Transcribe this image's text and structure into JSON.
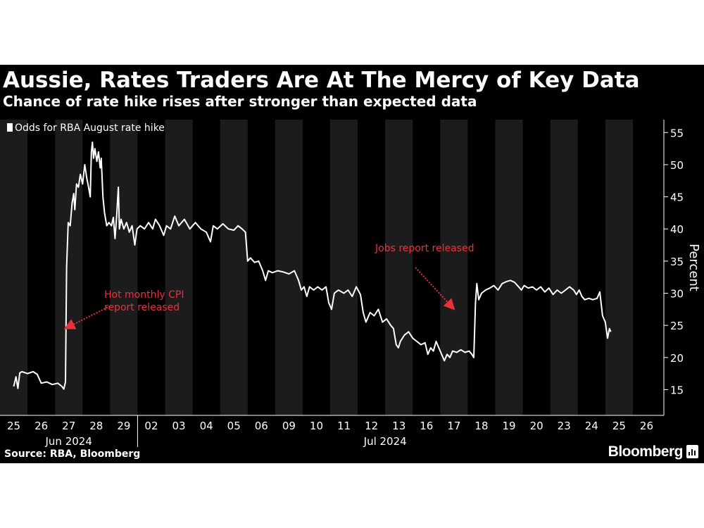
{
  "title": "Aussie, Rates Traders Are At The Mercy of Key Data",
  "subtitle": "Chance of rate hike rises after stronger than expected data",
  "source": "Source: RBA, Bloomberg",
  "brand": "Bloomberg",
  "colors": {
    "background": "#000000",
    "band": "#1c1c1c",
    "line": "#ffffff",
    "annotation": "#e8323c"
  },
  "chart_data": {
    "type": "line",
    "title": "Aussie, Rates Traders Are At The Mercy of Key Data",
    "subtitle": "Chance of rate hike rises after stronger than expected data",
    "ylabel": "Percent",
    "ylim": [
      11,
      57
    ],
    "yticks": [
      15,
      20,
      25,
      30,
      35,
      40,
      45,
      50,
      55
    ],
    "y_axis_side": "right",
    "legend": {
      "placement": "top-left",
      "entries": [
        "Odds for RBA August rate hike"
      ]
    },
    "categories": [
      "25",
      "26",
      "27",
      "28",
      "29",
      "02",
      "03",
      "04",
      "05",
      "06",
      "09",
      "10",
      "11",
      "12",
      "13",
      "16",
      "17",
      "18",
      "19",
      "20",
      "23",
      "24",
      "25",
      "26"
    ],
    "month_labels": [
      {
        "label": "Jun 2024",
        "center_index": 2
      },
      {
        "label": "Jul 2024",
        "center_index": 13.5
      }
    ],
    "series": [
      {
        "name": "Odds for RBA August rate hike",
        "points": [
          [
            0.0,
            15.5
          ],
          [
            0.08,
            17.0
          ],
          [
            0.15,
            15.2
          ],
          [
            0.22,
            17.6
          ],
          [
            0.3,
            17.8
          ],
          [
            0.5,
            17.5
          ],
          [
            0.7,
            17.8
          ],
          [
            0.85,
            17.4
          ],
          [
            1.0,
            16.0
          ],
          [
            1.2,
            16.2
          ],
          [
            1.4,
            15.8
          ],
          [
            1.6,
            16.0
          ],
          [
            1.75,
            15.5
          ],
          [
            1.82,
            15.1
          ],
          [
            1.88,
            16.2
          ],
          [
            1.92,
            34.0
          ],
          [
            1.98,
            41.0
          ],
          [
            2.05,
            40.5
          ],
          [
            2.12,
            44.0
          ],
          [
            2.18,
            45.5
          ],
          [
            2.22,
            43.0
          ],
          [
            2.28,
            47.0
          ],
          [
            2.35,
            46.5
          ],
          [
            2.42,
            48.5
          ],
          [
            2.5,
            47.0
          ],
          [
            2.58,
            50.0
          ],
          [
            2.65,
            48.0
          ],
          [
            2.72,
            46.5
          ],
          [
            2.78,
            45.0
          ],
          [
            2.82,
            52.0
          ],
          [
            2.86,
            53.5
          ],
          [
            2.9,
            51.0
          ],
          [
            2.95,
            52.5
          ],
          [
            3.02,
            50.5
          ],
          [
            3.08,
            52.0
          ],
          [
            3.14,
            49.5
          ],
          [
            3.18,
            51.0
          ],
          [
            3.24,
            45.0
          ],
          [
            3.3,
            42.5
          ],
          [
            3.38,
            40.5
          ],
          [
            3.46,
            41.0
          ],
          [
            3.55,
            40.5
          ],
          [
            3.62,
            41.8
          ],
          [
            3.68,
            38.5
          ],
          [
            3.74,
            42.0
          ],
          [
            3.8,
            46.5
          ],
          [
            3.84,
            40.0
          ],
          [
            3.9,
            41.5
          ],
          [
            4.0,
            40.0
          ],
          [
            4.1,
            41.0
          ],
          [
            4.2,
            39.5
          ],
          [
            4.3,
            40.5
          ],
          [
            4.4,
            37.5
          ],
          [
            4.48,
            40.0
          ],
          [
            4.6,
            40.5
          ],
          [
            4.75,
            40.0
          ],
          [
            4.9,
            41.0
          ],
          [
            5.05,
            40.0
          ],
          [
            5.15,
            41.5
          ],
          [
            5.3,
            40.5
          ],
          [
            5.45,
            39.0
          ],
          [
            5.55,
            40.5
          ],
          [
            5.7,
            40.0
          ],
          [
            5.85,
            42.0
          ],
          [
            6.0,
            40.5
          ],
          [
            6.2,
            41.5
          ],
          [
            6.4,
            40.0
          ],
          [
            6.6,
            41.0
          ],
          [
            6.8,
            40.0
          ],
          [
            7.0,
            39.5
          ],
          [
            7.15,
            38.0
          ],
          [
            7.25,
            40.5
          ],
          [
            7.4,
            40.0
          ],
          [
            7.6,
            40.8
          ],
          [
            7.8,
            40.0
          ],
          [
            8.0,
            39.8
          ],
          [
            8.15,
            40.5
          ],
          [
            8.3,
            40.0
          ],
          [
            8.42,
            39.5
          ],
          [
            8.5,
            35.0
          ],
          [
            8.6,
            35.5
          ],
          [
            8.75,
            34.8
          ],
          [
            8.9,
            35.0
          ],
          [
            9.05,
            33.5
          ],
          [
            9.15,
            32.0
          ],
          [
            9.25,
            33.5
          ],
          [
            9.4,
            33.2
          ],
          [
            9.6,
            33.5
          ],
          [
            9.8,
            33.3
          ],
          [
            10.0,
            33.0
          ],
          [
            10.2,
            33.5
          ],
          [
            10.35,
            32.0
          ],
          [
            10.45,
            30.5
          ],
          [
            10.55,
            31.0
          ],
          [
            10.65,
            29.5
          ],
          [
            10.75,
            31.0
          ],
          [
            10.9,
            30.5
          ],
          [
            11.05,
            31.0
          ],
          [
            11.2,
            30.5
          ],
          [
            11.35,
            31.0
          ],
          [
            11.45,
            28.5
          ],
          [
            11.55,
            27.5
          ],
          [
            11.65,
            30.0
          ],
          [
            11.8,
            30.5
          ],
          [
            12.0,
            30.0
          ],
          [
            12.15,
            30.5
          ],
          [
            12.3,
            29.5
          ],
          [
            12.45,
            31.0
          ],
          [
            12.6,
            29.8
          ],
          [
            12.7,
            27.0
          ],
          [
            12.8,
            25.5
          ],
          [
            12.95,
            27.0
          ],
          [
            13.1,
            26.5
          ],
          [
            13.25,
            27.5
          ],
          [
            13.4,
            25.5
          ],
          [
            13.55,
            26.0
          ],
          [
            13.7,
            25.0
          ],
          [
            13.8,
            24.5
          ],
          [
            13.9,
            22.0
          ],
          [
            13.98,
            21.5
          ],
          [
            14.05,
            22.5
          ],
          [
            14.2,
            23.5
          ],
          [
            14.35,
            24.0
          ],
          [
            14.5,
            23.0
          ],
          [
            14.65,
            22.5
          ],
          [
            14.8,
            22.0
          ],
          [
            14.95,
            22.3
          ],
          [
            15.05,
            20.5
          ],
          [
            15.15,
            21.5
          ],
          [
            15.25,
            21.0
          ],
          [
            15.35,
            22.5
          ],
          [
            15.45,
            21.5
          ],
          [
            15.55,
            20.5
          ],
          [
            15.65,
            19.5
          ],
          [
            15.75,
            20.5
          ],
          [
            15.85,
            20.0
          ],
          [
            15.95,
            21.0
          ],
          [
            16.1,
            20.8
          ],
          [
            16.25,
            21.2
          ],
          [
            16.4,
            20.8
          ],
          [
            16.55,
            21.0
          ],
          [
            16.65,
            20.5
          ],
          [
            16.72,
            20.0
          ],
          [
            16.78,
            28.5
          ],
          [
            16.83,
            31.5
          ],
          [
            16.9,
            29.0
          ],
          [
            17.0,
            30.0
          ],
          [
            17.15,
            30.5
          ],
          [
            17.3,
            30.8
          ],
          [
            17.45,
            31.2
          ],
          [
            17.6,
            30.5
          ],
          [
            17.75,
            31.5
          ],
          [
            17.9,
            31.8
          ],
          [
            18.05,
            32.0
          ],
          [
            18.2,
            31.7
          ],
          [
            18.35,
            31.0
          ],
          [
            18.45,
            30.5
          ],
          [
            18.55,
            31.2
          ],
          [
            18.7,
            30.8
          ],
          [
            18.85,
            31.0
          ],
          [
            19.0,
            30.5
          ],
          [
            19.15,
            31.0
          ],
          [
            19.3,
            30.2
          ],
          [
            19.45,
            30.8
          ],
          [
            19.6,
            29.8
          ],
          [
            19.75,
            30.5
          ],
          [
            19.9,
            30.0
          ],
          [
            20.05,
            30.5
          ],
          [
            20.2,
            31.0
          ],
          [
            20.35,
            30.5
          ],
          [
            20.45,
            29.8
          ],
          [
            20.55,
            30.5
          ],
          [
            20.65,
            29.5
          ],
          [
            20.75,
            29.0
          ],
          [
            20.9,
            29.2
          ],
          [
            21.05,
            29.0
          ],
          [
            21.2,
            29.2
          ],
          [
            21.3,
            30.2
          ],
          [
            21.4,
            26.5
          ],
          [
            21.5,
            25.5
          ],
          [
            21.58,
            23.0
          ],
          [
            21.65,
            24.5
          ],
          [
            21.7,
            24.0
          ]
        ]
      }
    ],
    "annotations": [
      {
        "text_lines": [
          "Hot monthly CPI",
          "report released"
        ],
        "arrow_from": [
          3.5,
          28.0
        ],
        "arrow_to": [
          2.0,
          24.8
        ]
      },
      {
        "text_lines": [
          "Jobs report released"
        ],
        "arrow_from": [
          14.6,
          34.0
        ],
        "arrow_to": [
          15.9,
          28.0
        ]
      }
    ]
  }
}
